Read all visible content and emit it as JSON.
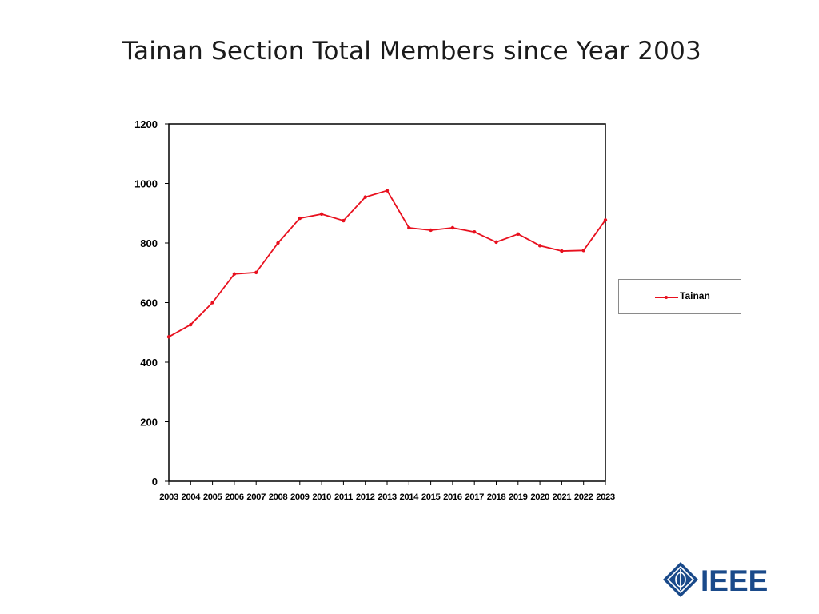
{
  "slide": {
    "title": "Tainan Section Total Members since Year 2003"
  },
  "logo": {
    "text": "IEEE",
    "color": "#1a4a8a"
  },
  "chart_data": {
    "type": "line",
    "title": "",
    "xlabel": "",
    "ylabel": "",
    "categories": [
      "2003",
      "2004",
      "2005",
      "2006",
      "2007",
      "2008",
      "2009",
      "2010",
      "2011",
      "2012",
      "2013",
      "2014",
      "2015",
      "2016",
      "2017",
      "2018",
      "2019",
      "2020",
      "2021",
      "2022",
      "2023"
    ],
    "series": [
      {
        "name": "Tainan",
        "color": "#e8101e",
        "values": [
          485,
          526,
          600,
          696,
          701,
          800,
          883,
          897,
          875,
          954,
          976,
          851,
          843,
          851,
          837,
          803,
          830,
          791,
          773,
          775,
          877
        ]
      }
    ],
    "ylim": [
      0,
      1200
    ],
    "yticks": [
      0,
      200,
      400,
      600,
      800,
      1000,
      1200
    ],
    "grid": false,
    "legend_position": "right"
  }
}
